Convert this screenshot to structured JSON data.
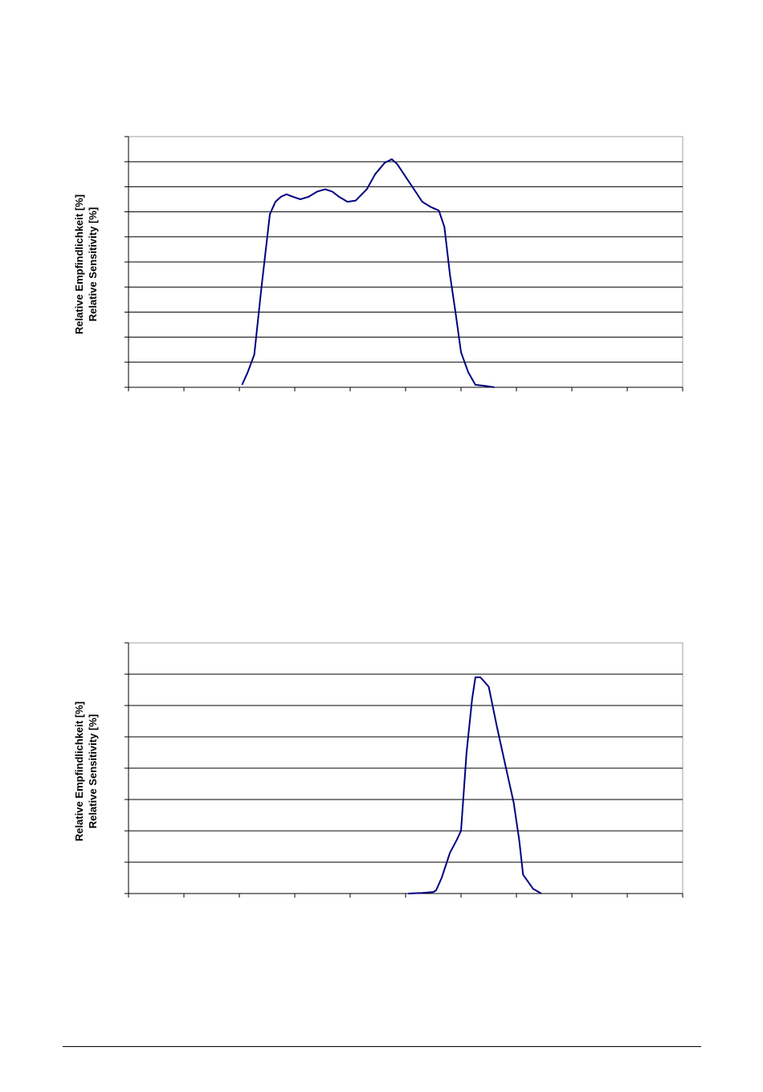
{
  "chart_data": [
    {
      "type": "line",
      "ylabel": [
        "Relative Empfindlichkeit [%]",
        "Relative Sensitivity [%]"
      ],
      "xlim": [
        0,
        10
      ],
      "ylim": [
        0,
        10
      ],
      "x_tick_count": 11,
      "y_grid_count": 11,
      "grid": true,
      "line_color": "#000080",
      "series": [
        {
          "x": [
            2.05,
            2.15,
            2.27,
            2.4,
            2.55,
            2.65,
            2.75,
            2.85,
            2.97,
            3.1,
            3.25,
            3.4,
            3.55,
            3.68,
            3.8,
            3.95,
            4.1,
            4.3,
            4.45,
            4.62,
            4.75,
            4.85,
            5.0,
            5.15,
            5.3,
            5.45,
            5.6,
            5.7,
            5.8,
            5.9,
            6.0,
            6.13,
            6.26,
            6.45,
            6.6
          ],
          "y": [
            0.1,
            0.6,
            1.3,
            4.0,
            6.9,
            7.4,
            7.6,
            7.7,
            7.6,
            7.5,
            7.6,
            7.8,
            7.9,
            7.8,
            7.6,
            7.4,
            7.45,
            7.9,
            8.5,
            8.95,
            9.1,
            8.9,
            8.4,
            7.9,
            7.4,
            7.2,
            7.05,
            6.4,
            4.5,
            3.0,
            1.4,
            0.6,
            0.1,
            0.05,
            0.0
          ]
        }
      ]
    },
    {
      "type": "line",
      "ylabel": [
        "Relative Empfindlichkeit [%]",
        "Relative Sensitivity [%]"
      ],
      "xlim": [
        0,
        10
      ],
      "ylim": [
        0,
        8
      ],
      "x_tick_count": 11,
      "y_grid_count": 9,
      "grid": true,
      "line_color": "#000080",
      "series": [
        {
          "x": [
            5.05,
            5.3,
            5.5,
            5.55,
            5.65,
            5.8,
            5.92,
            6.0,
            6.1,
            6.2,
            6.26,
            6.35,
            6.5,
            6.65,
            6.8,
            6.95,
            7.05,
            7.12,
            7.3,
            7.45
          ],
          "y": [
            0.0,
            0.02,
            0.05,
            0.1,
            0.5,
            1.3,
            1.7,
            2.0,
            4.5,
            6.2,
            6.9,
            6.9,
            6.6,
            5.3,
            4.1,
            2.9,
            1.7,
            0.6,
            0.15,
            0.0
          ]
        }
      ]
    }
  ]
}
